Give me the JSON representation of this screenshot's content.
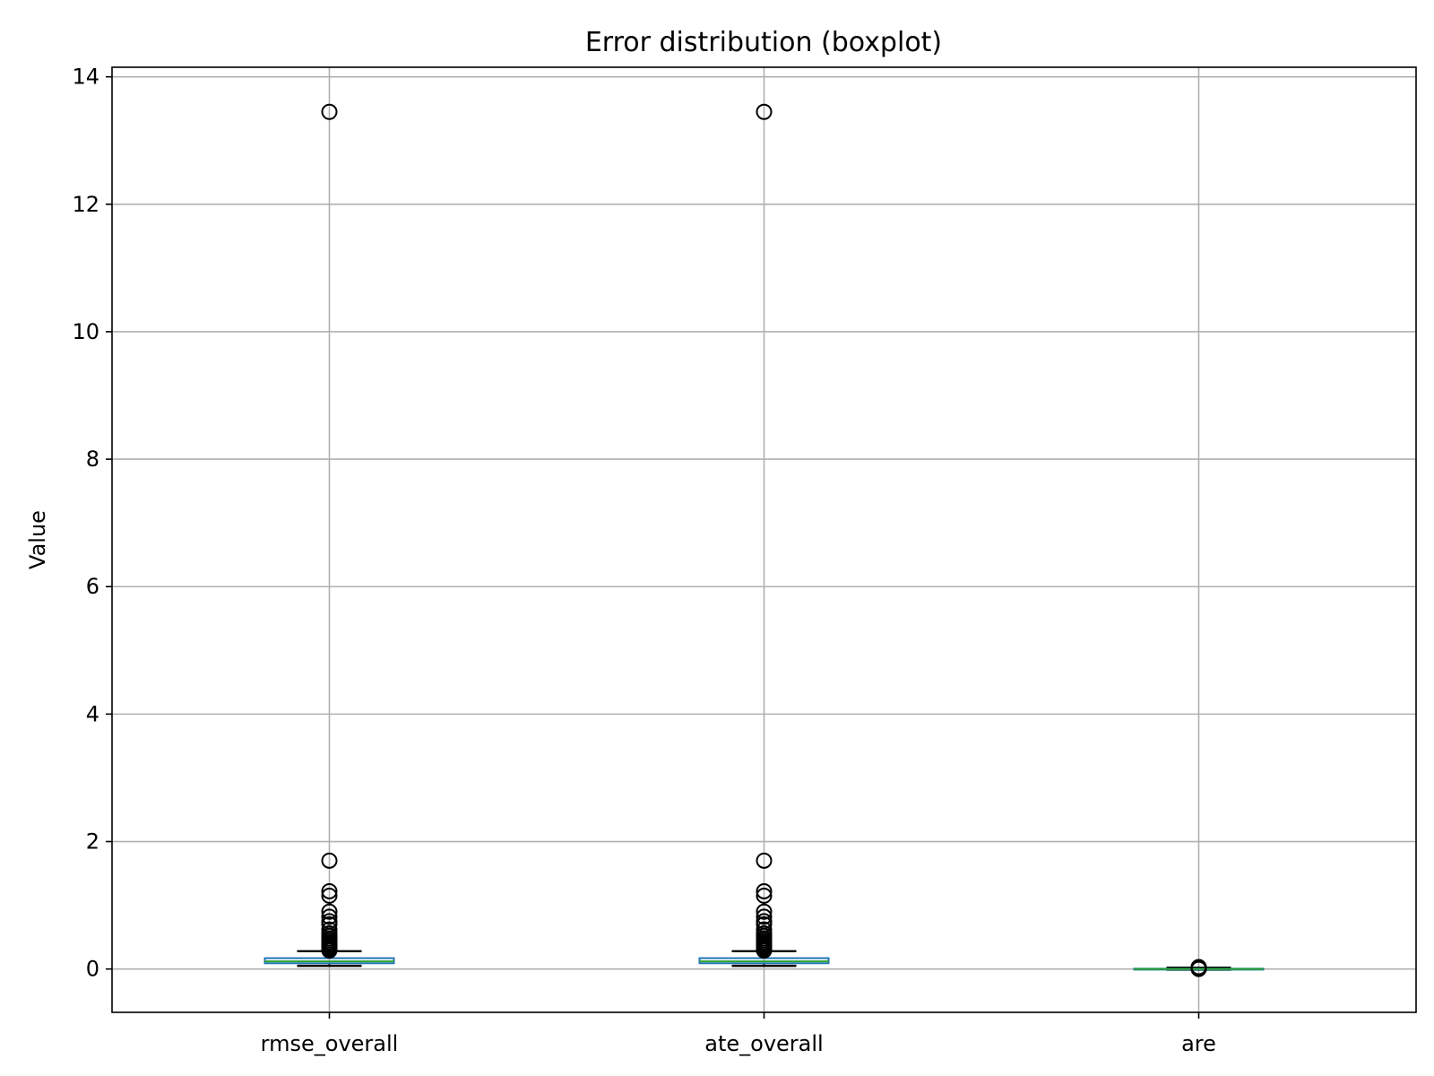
{
  "chart_data": {
    "type": "boxplot",
    "title": "Error distribution (boxplot)",
    "xlabel": "",
    "ylabel": "Value",
    "ylim": [
      -0.68,
      14.15
    ],
    "yticks": [
      0,
      2,
      4,
      6,
      8,
      10,
      12,
      14
    ],
    "grid": true,
    "categories": [
      "rmse_overall",
      "ate_overall",
      "are"
    ],
    "series": [
      {
        "category": "rmse_overall",
        "whisker_low": 0.05,
        "q1": 0.09,
        "median": 0.12,
        "q3": 0.17,
        "whisker_high": 0.28,
        "outliers": [
          0.29,
          0.31,
          0.33,
          0.35,
          0.37,
          0.39,
          0.42,
          0.45,
          0.48,
          0.52,
          0.56,
          0.62,
          0.7,
          0.75,
          0.82,
          0.9,
          1.15,
          1.22,
          1.7,
          13.45
        ]
      },
      {
        "category": "ate_overall",
        "whisker_low": 0.05,
        "q1": 0.09,
        "median": 0.12,
        "q3": 0.17,
        "whisker_high": 0.28,
        "outliers": [
          0.29,
          0.31,
          0.33,
          0.35,
          0.37,
          0.39,
          0.42,
          0.45,
          0.48,
          0.52,
          0.56,
          0.62,
          0.7,
          0.75,
          0.82,
          0.9,
          1.15,
          1.22,
          1.7,
          13.45
        ]
      },
      {
        "category": "are",
        "whisker_low": -0.01,
        "q1": -0.005,
        "median": 0.0,
        "q3": 0.005,
        "whisker_high": 0.02,
        "outliers": [
          0.0,
          0.01,
          0.02,
          0.03
        ]
      }
    ],
    "colors": {
      "box": "#1f77b4",
      "median": "#2ca02c",
      "whisker": "#000000",
      "outlier": "#000000",
      "grid": "#b0b0b0",
      "frame": "#000000"
    }
  }
}
